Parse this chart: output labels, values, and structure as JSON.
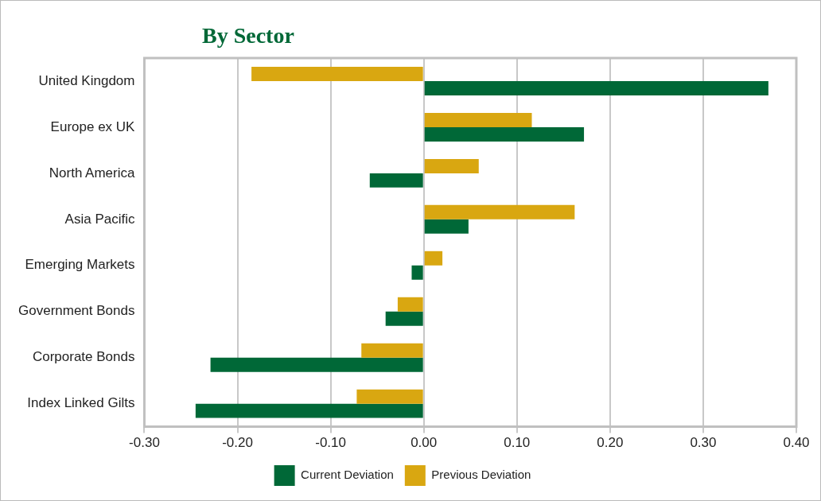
{
  "chart_data": {
    "type": "bar",
    "title": "By Sector",
    "orientation": "horizontal",
    "categories": [
      "United Kingdom",
      "Europe ex UK",
      "North America",
      "Asia Pacific",
      "Emerging Markets",
      "Government Bonds",
      "Corporate Bonds",
      "Index Linked Gilts"
    ],
    "series": [
      {
        "name": "Previous Deviation",
        "color": "#d9a711",
        "values": [
          -0.185,
          0.116,
          0.059,
          0.162,
          0.02,
          -0.028,
          -0.067,
          -0.072
        ]
      },
      {
        "name": "Current Deviation",
        "color": "#006837",
        "values": [
          0.37,
          0.172,
          -0.058,
          0.048,
          -0.013,
          -0.041,
          -0.229,
          -0.245
        ]
      }
    ],
    "xlim": [
      -0.3,
      0.4
    ],
    "xticks": [
      {
        "value": -0.3,
        "label": "-0.30"
      },
      {
        "value": -0.2,
        "label": "-0.20"
      },
      {
        "value": -0.1,
        "label": "-0.10"
      },
      {
        "value": 0,
        "label": "0.00"
      },
      {
        "value": 0.1,
        "label": "0.10"
      },
      {
        "value": 0.2,
        "label": "0.20"
      },
      {
        "value": 0.3,
        "label": "0.30"
      },
      {
        "value": 0.4,
        "label": "0.40"
      }
    ],
    "grid": "x",
    "legend": "bottom"
  }
}
